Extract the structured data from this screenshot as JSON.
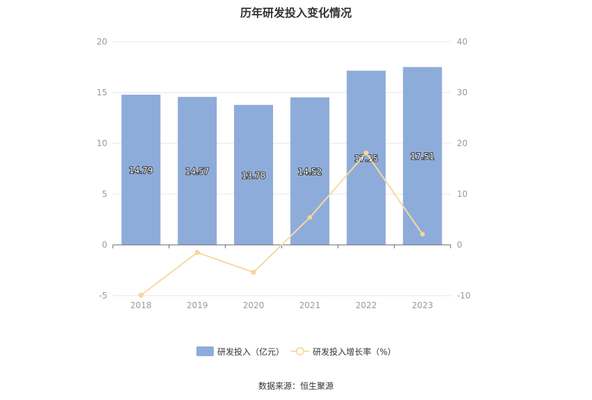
{
  "chart_data": {
    "type": "bar",
    "title": "历年研发投入变化情况",
    "categories": [
      "2018",
      "2019",
      "2020",
      "2021",
      "2022",
      "2023"
    ],
    "series": [
      {
        "name": "研发投入（亿元）",
        "type": "bar",
        "axis": "left",
        "color": "#8eacd9",
        "values": [
          14.79,
          14.57,
          13.78,
          14.52,
          17.15,
          17.51
        ],
        "labels": [
          "14.79",
          "14.57",
          "13.78",
          "14.52",
          "17.15",
          "17.51"
        ]
      },
      {
        "name": "研发投入增长率（%）",
        "type": "line",
        "axis": "right",
        "color": "#f8d9a0",
        "values": [
          -9.9,
          -1.5,
          -5.4,
          5.4,
          18.1,
          2.1
        ]
      }
    ],
    "yleft": {
      "ylim": [
        -5,
        20
      ],
      "ticks": [
        "-5",
        "0",
        "5",
        "10",
        "15",
        "20"
      ]
    },
    "yright": {
      "ylim": [
        -10,
        40
      ],
      "ticks": [
        "-10",
        "0",
        "10",
        "20",
        "30",
        "40"
      ]
    },
    "grid": true,
    "legend": "bottom-center"
  },
  "source": "数据来源：恒生聚源"
}
